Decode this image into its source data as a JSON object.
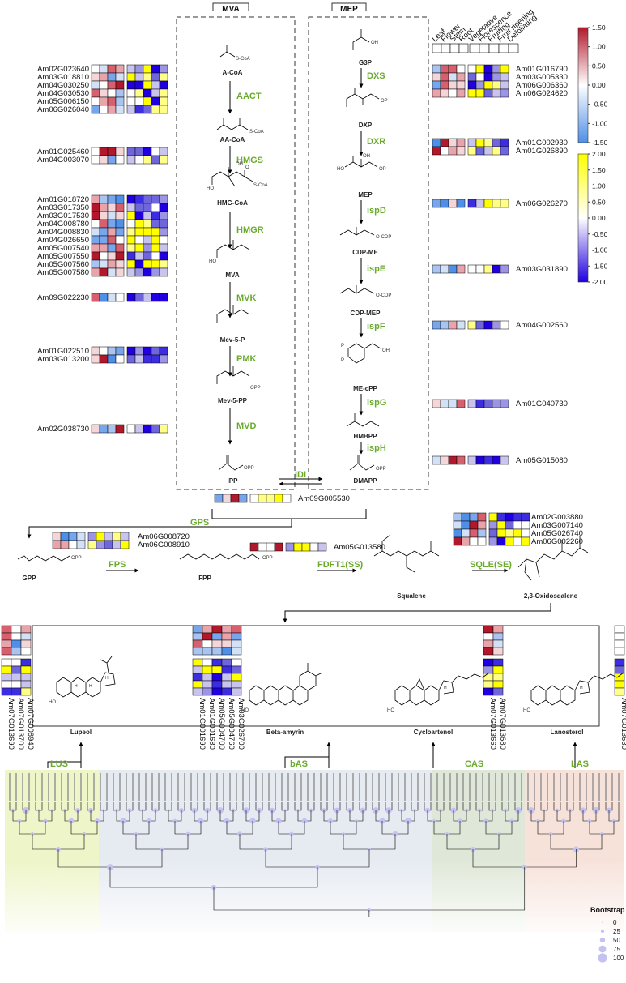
{
  "pathways": {
    "mva": "MVA",
    "mep": "MEP"
  },
  "tissue_headers": [
    "Leaf",
    "Flower",
    "Stem",
    "Root"
  ],
  "stage_headers": [
    "Vegetative",
    "Florescence",
    "Fruiting",
    "Fruit ripening",
    "Defoliating"
  ],
  "colorbars": {
    "tissue": {
      "ticks": [
        "1.50",
        "1.00",
        "0.50",
        "0.00",
        "-0.50",
        "-1.00",
        "-1.50"
      ],
      "colors": [
        "#b2182b",
        "#ffffff",
        "#4f8fe8"
      ]
    },
    "stage": {
      "ticks": [
        "2.00",
        "1.50",
        "1.00",
        "0.50",
        "0.00",
        "-0.50",
        "-1.00",
        "-1.50",
        "-2.00"
      ],
      "colors": [
        "#ffff00",
        "#ffffff",
        "#2000e0"
      ]
    }
  },
  "mva_steps": [
    {
      "metabolite": "A-CoA",
      "enzyme": "AACT"
    },
    {
      "metabolite": "AA-CoA",
      "enzyme": "HMGS"
    },
    {
      "metabolite": "HMG-CoA",
      "enzyme": "HMGR"
    },
    {
      "metabolite": "MVA",
      "enzyme": "MVK"
    },
    {
      "metabolite": "Mev-5-P",
      "enzyme": "PMK"
    },
    {
      "metabolite": "Mev-5-PP",
      "enzyme": "MVD"
    },
    {
      "metabolite": "IPP",
      "enzyme": ""
    }
  ],
  "mep_steps": [
    {
      "metabolite": "G3P",
      "enzyme": "DXS"
    },
    {
      "metabolite": "DXP",
      "enzyme": "DXR"
    },
    {
      "metabolite": "MEP",
      "enzyme": "ispD"
    },
    {
      "metabolite": "CDP-ME",
      "enzyme": "ispE"
    },
    {
      "metabolite": "CDP-MEP",
      "enzyme": "ispF"
    },
    {
      "metabolite": "ME-cPP",
      "enzyme": "ispG"
    },
    {
      "metabolite": "HMBPP",
      "enzyme": "ispH"
    },
    {
      "metabolite": "DMAPP",
      "enzyme": ""
    }
  ],
  "structure_labels": [
    "S-CoA",
    "S-CoA",
    "HO",
    "O",
    "S-CoA",
    "OH",
    "HO",
    "OPP",
    "OPP",
    "OH",
    "OP",
    "HO",
    "OH",
    "OP",
    "O-CDP",
    "O-CDP",
    "OH",
    "P",
    "P",
    "OPP"
  ],
  "idi": "IDI",
  "mva_genes": [
    [
      "Am02G023640",
      "Am03G018810",
      "Am04G030250",
      "Am04G030530",
      "Am05G006150",
      "Am06G026040"
    ],
    [
      "Am01G025460",
      "Am04G003070"
    ],
    [
      "Am01G018720",
      "Am03G017350",
      "Am03G017530",
      "Am04G008780",
      "Am04G008830",
      "Am04G026650",
      "Am05G007540",
      "Am05G007550",
      "Am05G007560",
      "Am05G007580"
    ],
    [
      "Am09G022230"
    ],
    [
      "Am01G022510",
      "Am03G013200"
    ],
    [
      "Am02G038730"
    ]
  ],
  "mep_genes": [
    [
      "Am01G016790",
      "Am03G005330",
      "Am06G006360",
      "Am06G024620"
    ],
    [
      "Am01G002930",
      "Am01G026890"
    ],
    [
      "Am06G026270"
    ],
    [
      "Am03G031890"
    ],
    [
      "Am04G002560"
    ],
    [
      "Am01G040730"
    ],
    [
      "Am05G015080"
    ]
  ],
  "idi_gene": "Am09G005530",
  "downstream": {
    "enzymes": [
      "GPS",
      "FPS",
      "FDFT1(SS)",
      "SQLE(SE)"
    ],
    "metabolites": [
      "GPP",
      "FPP",
      "Squalene",
      "2,3-Oxidosqalene"
    ],
    "structure_labels": [
      "OPP",
      "OPP"
    ],
    "gps_genes": [
      "Am06G008720",
      "Am06G008910"
    ],
    "fpps_gene": "Am05G013580",
    "sqle_genes": [
      "Am02G003880",
      "Am03G007140",
      "Am05G026740",
      "Am06G002260"
    ]
  },
  "triterpenes": [
    {
      "name": "Lupeol",
      "enzyme": "LUS",
      "genes": [
        "Am07G013690",
        "Am07G013700",
        "Am07G008940"
      ],
      "color": "#eef5c8"
    },
    {
      "name": "Beta-amyrin",
      "enzyme": "bAS",
      "genes": [
        "Am01G001690",
        "Am01G001680",
        "Am05G004700",
        "Am05G004760",
        "Am03G026700"
      ],
      "color": "#e6ebf2"
    },
    {
      "name": "Cycloartenol",
      "enzyme": "CAS",
      "genes": [
        "Am07G013660",
        "Am07G013680"
      ],
      "color": "#dfe8d8"
    },
    {
      "name": "Lanosterol",
      "enzyme": "LAS",
      "genes": [
        "Am07G013630"
      ],
      "color": "#f7e2da"
    }
  ],
  "ring_labels": [
    "HO",
    "H",
    "H",
    "H",
    "HO",
    "HO",
    "H",
    "HO",
    "H"
  ],
  "bootstrap": {
    "title": "Bootstrap",
    "values": [
      "0",
      "25",
      "50",
      "75",
      "100"
    ]
  }
}
